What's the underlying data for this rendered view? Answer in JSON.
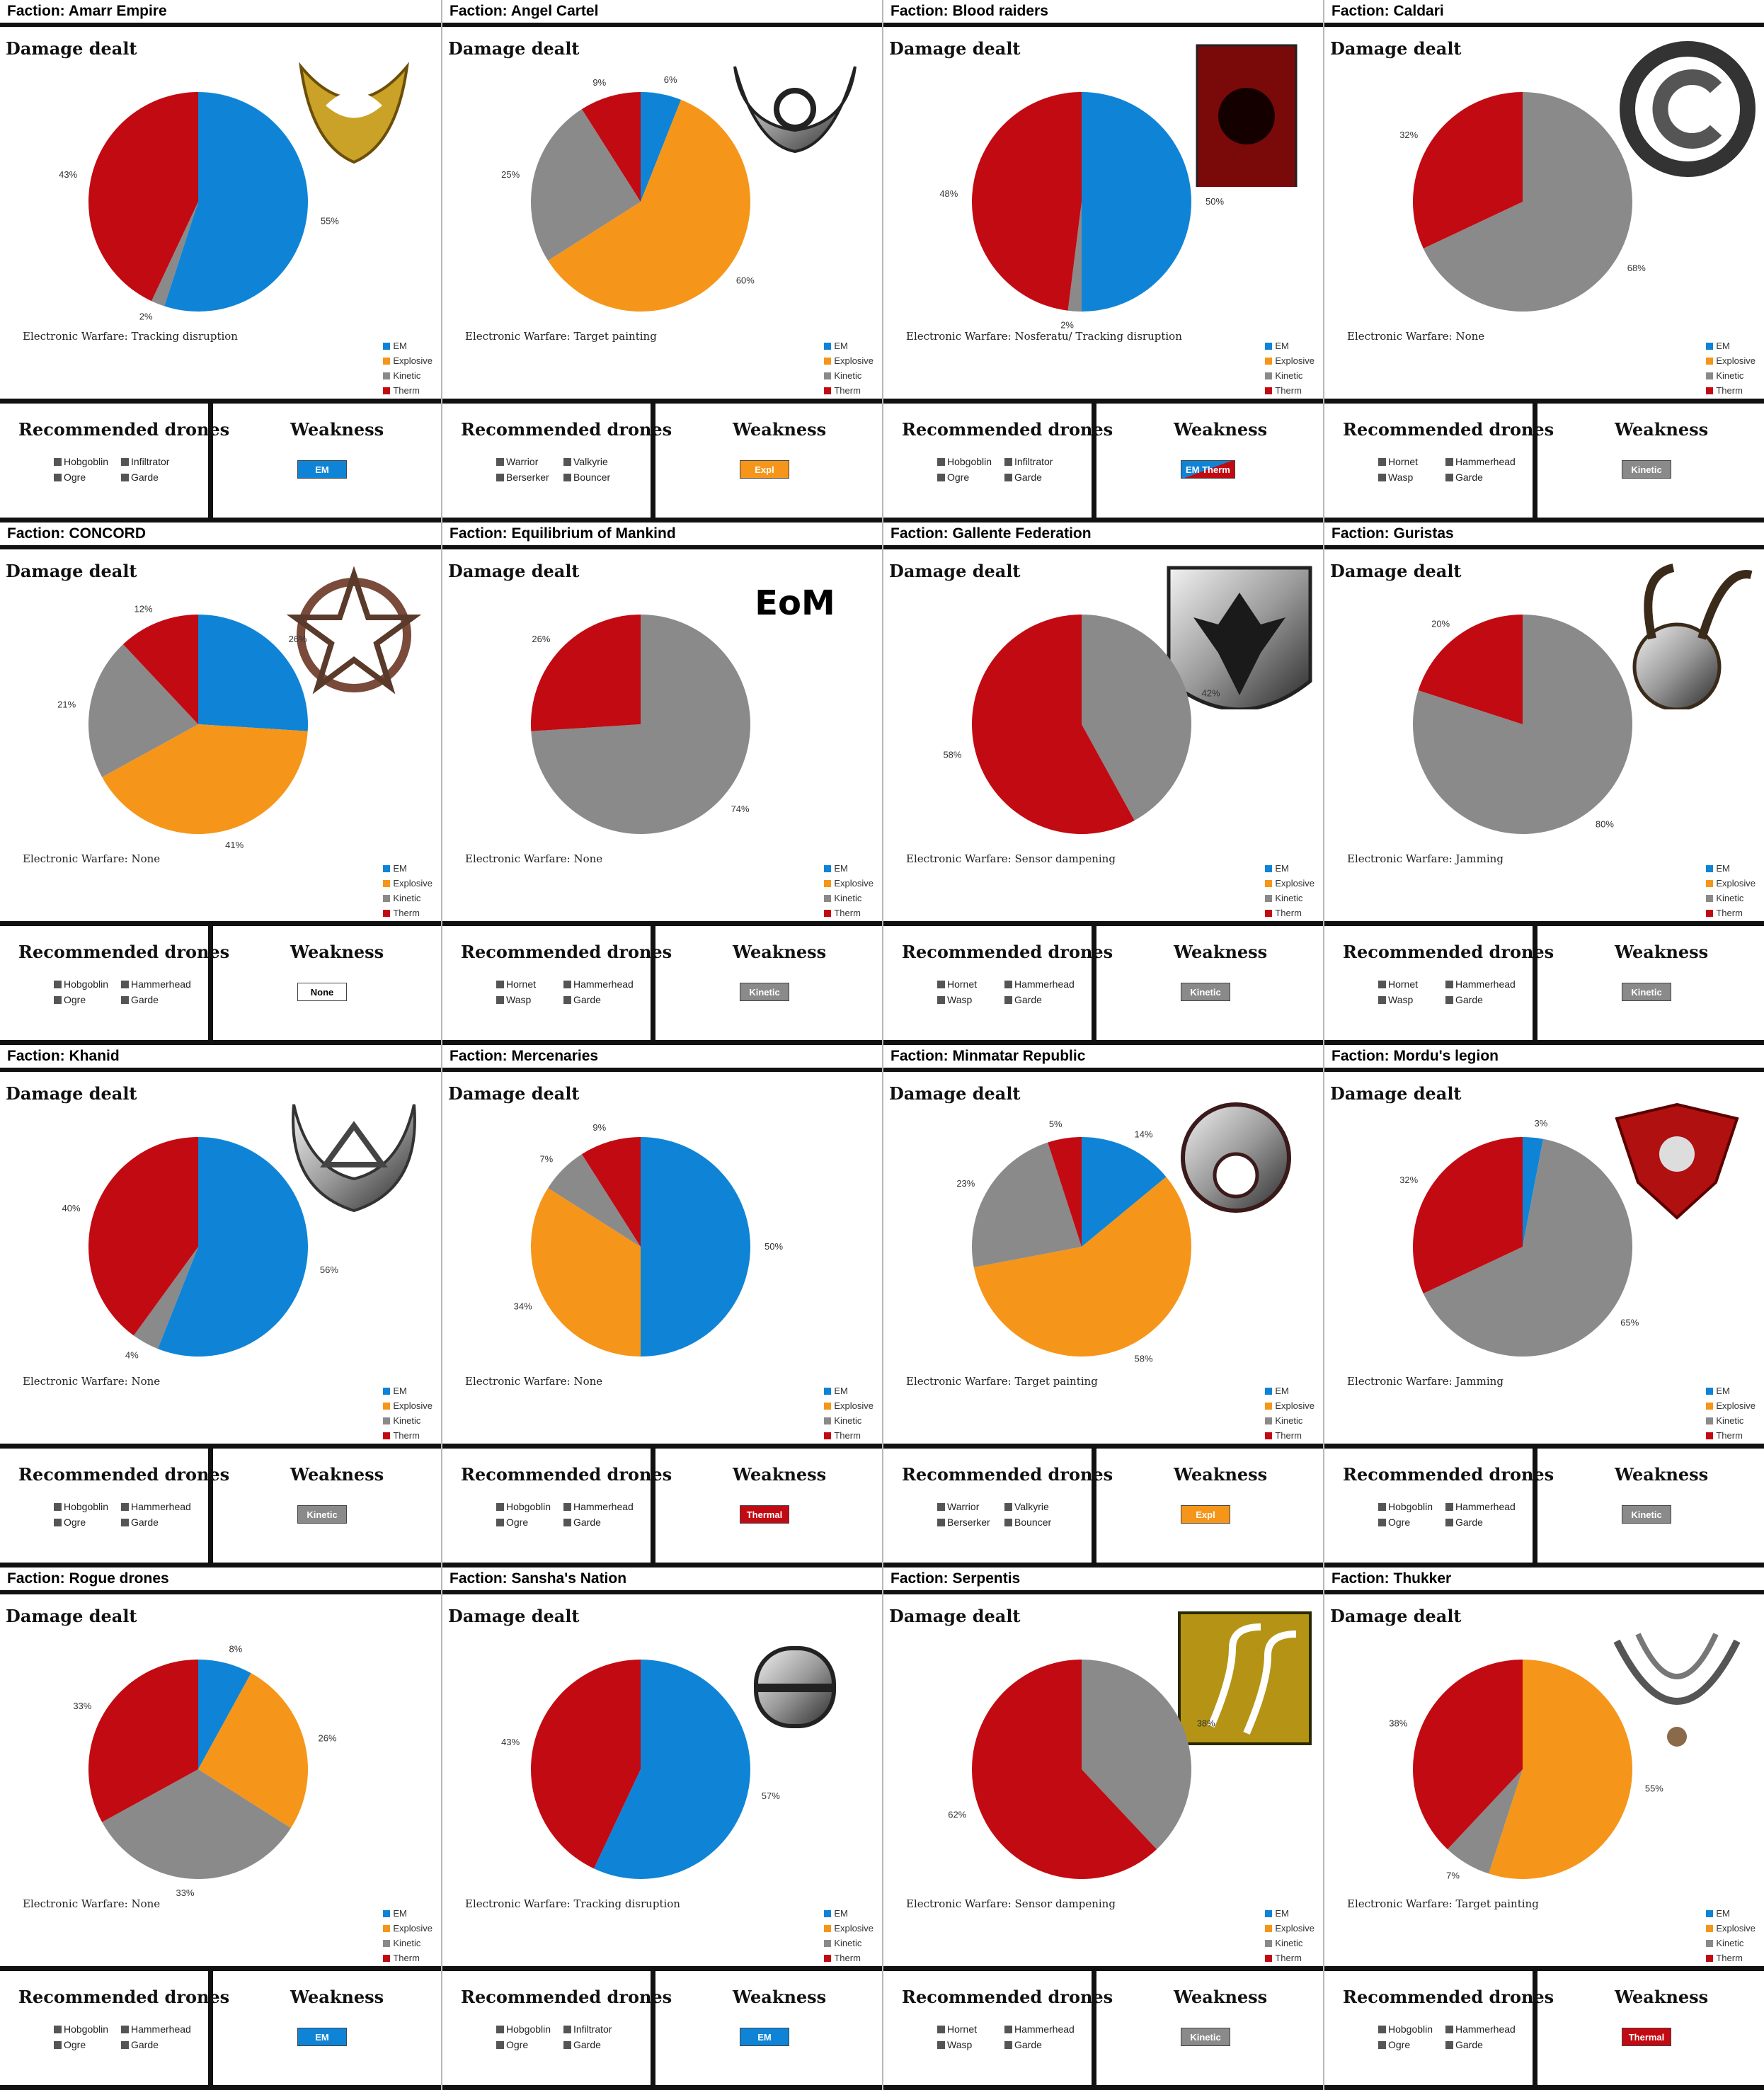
{
  "colors": {
    "EM": "#0f84d6",
    "Explosive": "#f5961a",
    "Kinetic": "#8a8a8a",
    "Therm": "#c20a12"
  },
  "labels": {
    "faction_prefix": "Faction:",
    "damage_dealt": "Damage dealt",
    "recommended_drones": "Recommended drones",
    "weakness": "Weakness",
    "legend": [
      "EM",
      "Explosive",
      "Kinetic",
      "Therm"
    ]
  },
  "factions": [
    {
      "name": "Amarr Empire",
      "electronic_warfare": "Electronic Warfare: Tracking disruption",
      "emblem": "amarr-emblem",
      "drones": [
        "Hobgoblin",
        "Infiltrator",
        "Ogre",
        "Garde"
      ],
      "weakness": "EM",
      "weakness_type": "EM"
    },
    {
      "name": "Angel Cartel",
      "electronic_warfare": "Electronic Warfare: Target painting",
      "emblem": "angel-emblem",
      "drones": [
        "Warrior",
        "Valkyrie",
        "Berserker",
        "Bouncer"
      ],
      "weakness": "Expl",
      "weakness_type": "Explosive"
    },
    {
      "name": "Blood raiders",
      "electronic_warfare": "Electronic Warfare: Nosferatu/ Tracking disruption",
      "emblem": "blood-raiders-emblem",
      "drones": [
        "Hobgoblin",
        "Infiltrator",
        "Ogre",
        "Garde"
      ],
      "weakness": "EM Therm",
      "weakness_type": "EMTherm"
    },
    {
      "name": "Caldari",
      "electronic_warfare": "Electronic Warfare: None",
      "emblem": "caldari-emblem",
      "drones": [
        "Hornet",
        "Hammerhead",
        "Wasp",
        "Garde"
      ],
      "weakness": "Kinetic",
      "weakness_type": "Kinetic"
    },
    {
      "name": "CONCORD",
      "electronic_warfare": "Electronic Warfare: None",
      "emblem": "concord-emblem",
      "drones": [
        "Hobgoblin",
        "Hammerhead",
        "Ogre",
        "Garde"
      ],
      "weakness": "None",
      "weakness_type": "None"
    },
    {
      "name": "Equilibrium of Mankind",
      "electronic_warfare": "Electronic Warfare: None",
      "emblem": "eom-emblem",
      "emblem_text": "EoM",
      "drones": [
        "Hornet",
        "Hammerhead",
        "Wasp",
        "Garde"
      ],
      "weakness": "Kinetic",
      "weakness_type": "Kinetic"
    },
    {
      "name": "Gallente Federation",
      "electronic_warfare": "Electronic Warfare: Sensor dampening",
      "emblem": "gallente-emblem",
      "drones": [
        "Hornet",
        "Hammerhead",
        "Wasp",
        "Garde"
      ],
      "weakness": "Kinetic",
      "weakness_type": "Kinetic"
    },
    {
      "name": "Guristas",
      "electronic_warfare": "Electronic Warfare: Jamming",
      "emblem": "guristas-emblem",
      "drones": [
        "Hornet",
        "Hammerhead",
        "Wasp",
        "Garde"
      ],
      "weakness": "Kinetic",
      "weakness_type": "Kinetic"
    },
    {
      "name": "Khanid",
      "electronic_warfare": "Electronic Warfare: None",
      "emblem": "khanid-emblem",
      "drones": [
        "Hobgoblin",
        "Hammerhead",
        "Ogre",
        "Garde"
      ],
      "weakness": "Kinetic",
      "weakness_type": "Kinetic"
    },
    {
      "name": "Mercenaries",
      "electronic_warfare": "Electronic Warfare: None",
      "emblem": "",
      "drones": [
        "Hobgoblin",
        "Hammerhead",
        "Ogre",
        "Garde"
      ],
      "weakness": "Thermal",
      "weakness_type": "Therm"
    },
    {
      "name": "Minmatar Republic",
      "electronic_warfare": "Electronic Warfare: Target painting",
      "emblem": "minmatar-emblem",
      "drones": [
        "Warrior",
        "Valkyrie",
        "Berserker",
        "Bouncer"
      ],
      "weakness": "Expl",
      "weakness_type": "Explosive"
    },
    {
      "name": "Mordu's legion",
      "electronic_warfare": "Electronic Warfare: Jamming",
      "emblem": "mordu-emblem",
      "drones": [
        "Hobgoblin",
        "Hammerhead",
        "Ogre",
        "Garde"
      ],
      "weakness": "Kinetic",
      "weakness_type": "Kinetic"
    },
    {
      "name": "Rogue drones",
      "electronic_warfare": "Electronic Warfare: None",
      "emblem": "",
      "drones": [
        "Hobgoblin",
        "Hammerhead",
        "Ogre",
        "Garde"
      ],
      "weakness": "EM",
      "weakness_type": "EM"
    },
    {
      "name": "Sansha's Nation",
      "electronic_warfare": "Electronic Warfare: Tracking disruption",
      "emblem": "sansha-emblem",
      "drones": [
        "Hobgoblin",
        "Infiltrator",
        "Ogre",
        "Garde"
      ],
      "weakness": "EM",
      "weakness_type": "EM"
    },
    {
      "name": "Serpentis",
      "electronic_warfare": "Electronic Warfare: Sensor dampening",
      "emblem": "serpentis-emblem",
      "drones": [
        "Hornet",
        "Hammerhead",
        "Wasp",
        "Garde"
      ],
      "weakness": "Kinetic",
      "weakness_type": "Kinetic"
    },
    {
      "name": "Thukker",
      "electronic_warfare": "Electronic Warfare: Target painting",
      "emblem": "thukker-emblem",
      "drones": [
        "Hobgoblin",
        "Hammerhead",
        "Ogre",
        "Garde"
      ],
      "weakness": "Thermal",
      "weakness_type": "Therm"
    }
  ],
  "chart_data": [
    {
      "type": "pie",
      "title": "Damage dealt",
      "legend_position": "bottom-right",
      "categories": [
        "EM",
        "Explosive",
        "Kinetic",
        "Therm"
      ],
      "values": [
        55,
        0,
        2,
        43
      ]
    },
    {
      "type": "pie",
      "title": "Damage dealt",
      "legend_position": "bottom-right",
      "categories": [
        "EM",
        "Explosive",
        "Kinetic",
        "Therm"
      ],
      "values": [
        6,
        60,
        25,
        9
      ]
    },
    {
      "type": "pie",
      "title": "Damage dealt",
      "legend_position": "bottom-right",
      "categories": [
        "EM",
        "Explosive",
        "Kinetic",
        "Therm"
      ],
      "values": [
        50,
        0,
        2,
        48
      ]
    },
    {
      "type": "pie",
      "title": "Damage dealt",
      "legend_position": "bottom-right",
      "categories": [
        "EM",
        "Explosive",
        "Kinetic",
        "Therm"
      ],
      "values": [
        0,
        0,
        68,
        32
      ]
    },
    {
      "type": "pie",
      "title": "Damage dealt",
      "legend_position": "bottom-right",
      "categories": [
        "EM",
        "Explosive",
        "Kinetic",
        "Therm"
      ],
      "values": [
        26,
        41,
        21,
        12
      ]
    },
    {
      "type": "pie",
      "title": "Damage dealt",
      "legend_position": "bottom-right",
      "categories": [
        "EM",
        "Explosive",
        "Kinetic",
        "Therm"
      ],
      "values": [
        0,
        0,
        74,
        26
      ]
    },
    {
      "type": "pie",
      "title": "Damage dealt",
      "legend_position": "bottom-right",
      "categories": [
        "EM",
        "Explosive",
        "Kinetic",
        "Therm"
      ],
      "values": [
        0,
        0,
        42,
        58
      ]
    },
    {
      "type": "pie",
      "title": "Damage dealt",
      "legend_position": "bottom-right",
      "categories": [
        "EM",
        "Explosive",
        "Kinetic",
        "Therm"
      ],
      "values": [
        0,
        0,
        80,
        20
      ]
    },
    {
      "type": "pie",
      "title": "Damage dealt",
      "legend_position": "bottom-right",
      "categories": [
        "EM",
        "Explosive",
        "Kinetic",
        "Therm"
      ],
      "values": [
        56,
        0,
        4,
        40
      ]
    },
    {
      "type": "pie",
      "title": "Damage dealt",
      "legend_position": "bottom-right",
      "categories": [
        "EM",
        "Explosive",
        "Kinetic",
        "Therm"
      ],
      "values": [
        50,
        34,
        7,
        9
      ]
    },
    {
      "type": "pie",
      "title": "Damage dealt",
      "legend_position": "bottom-right",
      "categories": [
        "EM",
        "Explosive",
        "Kinetic",
        "Therm"
      ],
      "values": [
        14,
        58,
        23,
        5
      ]
    },
    {
      "type": "pie",
      "title": "Damage dealt",
      "legend_position": "bottom-right",
      "categories": [
        "EM",
        "Explosive",
        "Kinetic",
        "Therm"
      ],
      "values": [
        3,
        0,
        65,
        32
      ]
    },
    {
      "type": "pie",
      "title": "Damage dealt",
      "legend_position": "bottom-right",
      "categories": [
        "EM",
        "Explosive",
        "Kinetic",
        "Therm"
      ],
      "values": [
        8,
        26,
        33,
        33
      ]
    },
    {
      "type": "pie",
      "title": "Damage dealt",
      "legend_position": "bottom-right",
      "categories": [
        "EM",
        "Explosive",
        "Kinetic",
        "Therm"
      ],
      "values": [
        57,
        0,
        0,
        43
      ]
    },
    {
      "type": "pie",
      "title": "Damage dealt",
      "legend_position": "bottom-right",
      "categories": [
        "EM",
        "Explosive",
        "Kinetic",
        "Therm"
      ],
      "values": [
        0,
        0,
        38,
        62
      ]
    },
    {
      "type": "pie",
      "title": "Damage dealt",
      "legend_position": "bottom-right",
      "categories": [
        "EM",
        "Explosive",
        "Kinetic",
        "Therm"
      ],
      "values": [
        0,
        55,
        7,
        38
      ]
    }
  ]
}
